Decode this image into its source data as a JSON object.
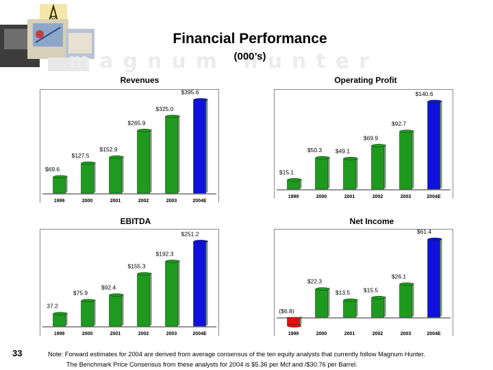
{
  "header": {
    "title": "Financial Performance",
    "subtitle": "(000’s)",
    "watermark": "magnum hunter"
  },
  "page_number": "33",
  "footnotes": [
    "Note: Forward estimates for 2004 are derived from average consensus of the ten equity analysts that currently follow Magnum Hunter.",
    "The Benchmark Price Consensus from these analysts for 2004 is $5.36 per Mcf and /$30.76 per Barrel."
  ],
  "colors": {
    "actual_bar": "#1f9a1f",
    "estimate_bar": "#1010dd",
    "negative_bar": "#e01010",
    "frame": "#888888"
  },
  "chart_data": [
    {
      "type": "bar",
      "title": "Revenues",
      "categories": [
        "1999",
        "2000",
        "2001",
        "2002",
        "2003",
        "2004E"
      ],
      "values": [
        69.6,
        127.5,
        152.9,
        265.9,
        325.0,
        395.6
      ],
      "labels": [
        "$69.6",
        "$127.5",
        "$152.9",
        "$265.9",
        "$325.0",
        "$395.6"
      ],
      "ylim": [
        0,
        400
      ],
      "estimate_index": 5
    },
    {
      "type": "bar",
      "title": "Operating Profit",
      "categories": [
        "1999",
        "2000",
        "2001",
        "2002",
        "2003",
        "2004E"
      ],
      "values": [
        15.1,
        50.3,
        49.1,
        69.9,
        92.7,
        140.6
      ],
      "labels": [
        "$15.1",
        "$50.3",
        "$49.1",
        "$69.9",
        "$92.7",
        "$140.6"
      ],
      "ylim": [
        0,
        145
      ],
      "estimate_index": 5
    },
    {
      "type": "bar",
      "title": "EBITDA",
      "categories": [
        "1999",
        "2000",
        "2001",
        "2002",
        "2003",
        "2004E"
      ],
      "values": [
        37.2,
        75.9,
        92.4,
        155.3,
        192.3,
        251.2
      ],
      "labels": [
        "37.2",
        "$75.9",
        "$92.4",
        "$155.3",
        "$192.3",
        "$251.2"
      ],
      "ylim": [
        0,
        260
      ],
      "estimate_index": 5
    },
    {
      "type": "bar",
      "title": "Net Income",
      "categories": [
        "1999",
        "2000",
        "2001",
        "2002",
        "2003",
        "2004E"
      ],
      "values": [
        -6.8,
        22.3,
        13.5,
        15.5,
        26.1,
        61.4
      ],
      "labels": [
        "($6.8)",
        "$22.3",
        "$13.5",
        "$15.5",
        "$26.1",
        "$61.4"
      ],
      "ylim": [
        -7,
        62
      ],
      "estimate_index": 5
    }
  ]
}
